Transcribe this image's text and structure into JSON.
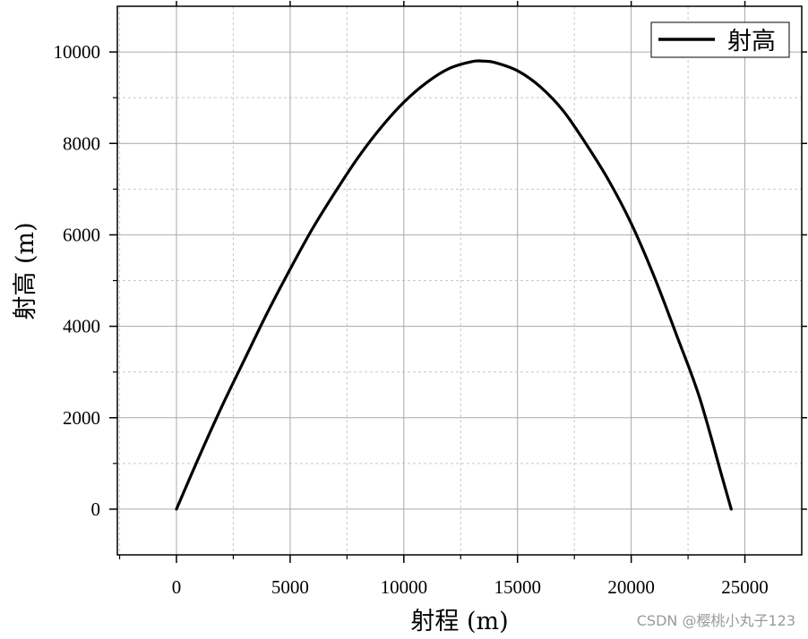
{
  "chart_data": {
    "type": "line",
    "title": "",
    "xlabel": "射程 (m)",
    "ylabel": "射高 (m)",
    "xlim": [
      -2600,
      27500
    ],
    "ylim": [
      -1000,
      11000
    ],
    "xticks": [
      0,
      5000,
      10000,
      15000,
      20000,
      25000
    ],
    "yticks": [
      0,
      2000,
      4000,
      6000,
      8000,
      10000
    ],
    "grid": true,
    "legend_position": "top-right",
    "series": [
      {
        "name": "射高",
        "color": "#000000",
        "x": [
          0,
          1000,
          2000,
          3000,
          4000,
          5000,
          6000,
          7000,
          8000,
          9000,
          10000,
          11000,
          12000,
          13000,
          13500,
          14000,
          15000,
          16000,
          17000,
          18000,
          19000,
          20000,
          21000,
          22000,
          23000,
          24000,
          24400
        ],
        "y": [
          0,
          1150,
          2250,
          3280,
          4300,
          5250,
          6150,
          6950,
          7700,
          8350,
          8900,
          9330,
          9640,
          9790,
          9800,
          9770,
          9590,
          9240,
          8720,
          8000,
          7200,
          6250,
          5100,
          3800,
          2450,
          700,
          0
        ]
      }
    ]
  },
  "watermark": "CSDN @樱桃小丸子123"
}
